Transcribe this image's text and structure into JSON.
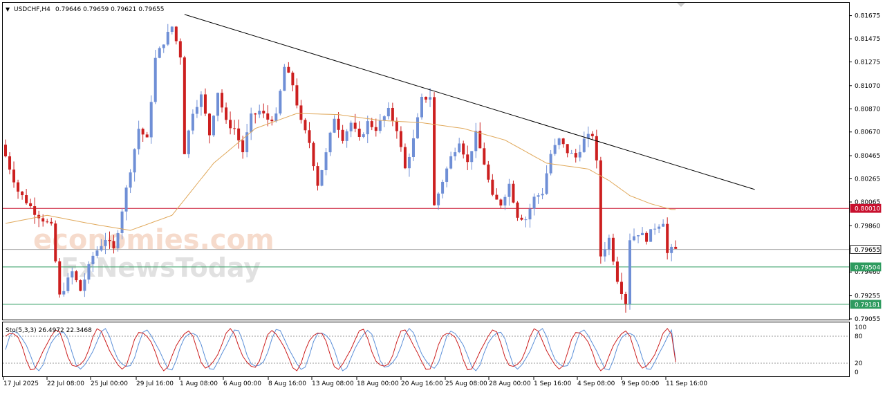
{
  "header": {
    "menu_arrow": "▼",
    "symbol": "USDCHF,H4",
    "ohlc": "0.79646 0.79659 0.79621 0.79655"
  },
  "watermark": {
    "line1": "economies.com",
    "line2": "FxNewsToday"
  },
  "colors": {
    "bull": "#6f8fd6",
    "bear": "#cc1f1f",
    "ma": "#e0a85a",
    "trendline": "#000000",
    "resistance": "#c8102e",
    "support": "#2e9b5f",
    "current": "#aaaaaa",
    "stoch_main": "#5b8fd8",
    "stoch_signal": "#cc1f1f"
  },
  "chart_data": [
    {
      "type": "candlestick",
      "title": "USDCHF,H4",
      "ylim": [
        0.79055,
        0.8178
      ],
      "y_ticks": [
        "0.81675",
        "0.81475",
        "0.81275",
        "0.81070",
        "0.80870",
        "0.80670",
        "0.80465",
        "0.80265",
        "0.80065",
        "0.79860",
        "0.79660",
        "0.79460",
        "0.79255",
        "0.79055"
      ],
      "x_ticks": [
        "17 Jul 2025",
        "22 Jul 08:00",
        "25 Jul 00:00",
        "29 Jul 16:00",
        "1 Aug 08:00",
        "6 Aug 00:00",
        "8 Aug 16:00",
        "13 Aug 08:00",
        "18 Aug 00:00",
        "20 Aug 16:00",
        "25 Aug 08:00",
        "28 Aug 00:00",
        "1 Sep 16:00",
        "4 Sep 08:00",
        "9 Sep 00:00",
        "11 Sep 16:00"
      ],
      "candle_count": 162,
      "path_keypoints": [
        [
          0,
          0.8056
        ],
        [
          4,
          0.8016
        ],
        [
          8,
          0.7998
        ],
        [
          12,
          0.7985
        ],
        [
          14,
          0.7925
        ],
        [
          17,
          0.7946
        ],
        [
          19,
          0.793
        ],
        [
          22,
          0.796
        ],
        [
          25,
          0.7975
        ],
        [
          27,
          0.7965
        ],
        [
          29,
          0.8
        ],
        [
          31,
          0.8035
        ],
        [
          33,
          0.807
        ],
        [
          35,
          0.806
        ],
        [
          37,
          0.813
        ],
        [
          39,
          0.8145
        ],
        [
          41,
          0.8158
        ],
        [
          43,
          0.8133
        ],
        [
          44,
          0.805
        ],
        [
          46,
          0.8085
        ],
        [
          48,
          0.8098
        ],
        [
          50,
          0.8065
        ],
        [
          52,
          0.8102
        ],
        [
          54,
          0.8075
        ],
        [
          56,
          0.807
        ],
        [
          58,
          0.805
        ],
        [
          60,
          0.808
        ],
        [
          62,
          0.8085
        ],
        [
          64,
          0.8078
        ],
        [
          66,
          0.808
        ],
        [
          68,
          0.8123
        ],
        [
          70,
          0.8108
        ],
        [
          72,
          0.8075
        ],
        [
          74,
          0.8058
        ],
        [
          76,
          0.8022
        ],
        [
          78,
          0.8048
        ],
        [
          80,
          0.808
        ],
        [
          82,
          0.8062
        ],
        [
          84,
          0.8075
        ],
        [
          86,
          0.806
        ],
        [
          88,
          0.8075
        ],
        [
          90,
          0.807
        ],
        [
          93,
          0.8085
        ],
        [
          95,
          0.807
        ],
        [
          97,
          0.8035
        ],
        [
          99,
          0.806
        ],
        [
          101,
          0.8095
        ],
        [
          103,
          0.8098
        ],
        [
          104,
          0.8003
        ],
        [
          106,
          0.8025
        ],
        [
          108,
          0.8045
        ],
        [
          110,
          0.806
        ],
        [
          112,
          0.804
        ],
        [
          114,
          0.8065
        ],
        [
          116,
          0.804
        ],
        [
          118,
          0.801
        ],
        [
          120,
          0.8005
        ],
        [
          122,
          0.8022
        ],
        [
          124,
          0.7995
        ],
        [
          126,
          0.7992
        ],
        [
          128,
          0.801
        ],
        [
          130,
          0.8015
        ],
        [
          132,
          0.8048
        ],
        [
          134,
          0.806
        ],
        [
          136,
          0.805
        ],
        [
          138,
          0.8045
        ],
        [
          140,
          0.806
        ],
        [
          142,
          0.8065
        ],
        [
          143,
          0.804
        ],
        [
          144,
          0.796
        ],
        [
          146,
          0.7975
        ],
        [
          148,
          0.794
        ],
        [
          150,
          0.792
        ],
        [
          151,
          0.7975
        ],
        [
          153,
          0.798
        ],
        [
          155,
          0.7975
        ],
        [
          157,
          0.7985
        ],
        [
          159,
          0.799
        ],
        [
          160,
          0.7962
        ],
        [
          161,
          0.7965
        ]
      ],
      "moving_average_keypoints": [
        [
          0,
          0.7988
        ],
        [
          10,
          0.7995
        ],
        [
          20,
          0.7988
        ],
        [
          30,
          0.7982
        ],
        [
          40,
          0.7995
        ],
        [
          50,
          0.804
        ],
        [
          60,
          0.807
        ],
        [
          70,
          0.8083
        ],
        [
          80,
          0.8082
        ],
        [
          90,
          0.8077
        ],
        [
          100,
          0.8075
        ],
        [
          110,
          0.807
        ],
        [
          120,
          0.806
        ],
        [
          130,
          0.804
        ],
        [
          140,
          0.8035
        ],
        [
          145,
          0.8025
        ],
        [
          150,
          0.8012
        ],
        [
          155,
          0.8005
        ],
        [
          160,
          0.8
        ]
      ],
      "trendline": {
        "from": [
          43,
          0.81685
        ],
        "to": [
          180,
          0.80173
        ]
      },
      "levels": [
        {
          "value": 0.8001,
          "label": "0.80010",
          "kind": "resistance"
        },
        {
          "value": 0.79655,
          "label": "0.79655",
          "kind": "current"
        },
        {
          "value": 0.79504,
          "label": "0.79504",
          "kind": "support"
        },
        {
          "value": 0.79181,
          "label": "0.79181",
          "kind": "support"
        }
      ]
    },
    {
      "type": "line",
      "title": "Sto(5,3,3) 26.4972 22.3468",
      "ylim": [
        0,
        100
      ],
      "y_ticks": [
        "100",
        "80",
        "20",
        "0"
      ],
      "levels": [
        80,
        20
      ],
      "series": [
        {
          "name": "main",
          "period": 10.5,
          "phase": 0.0
        },
        {
          "name": "signal",
          "period": 10.5,
          "phase": 1.2
        }
      ],
      "last_values": {
        "main": 26.4972,
        "signal": 22.3468
      }
    }
  ]
}
